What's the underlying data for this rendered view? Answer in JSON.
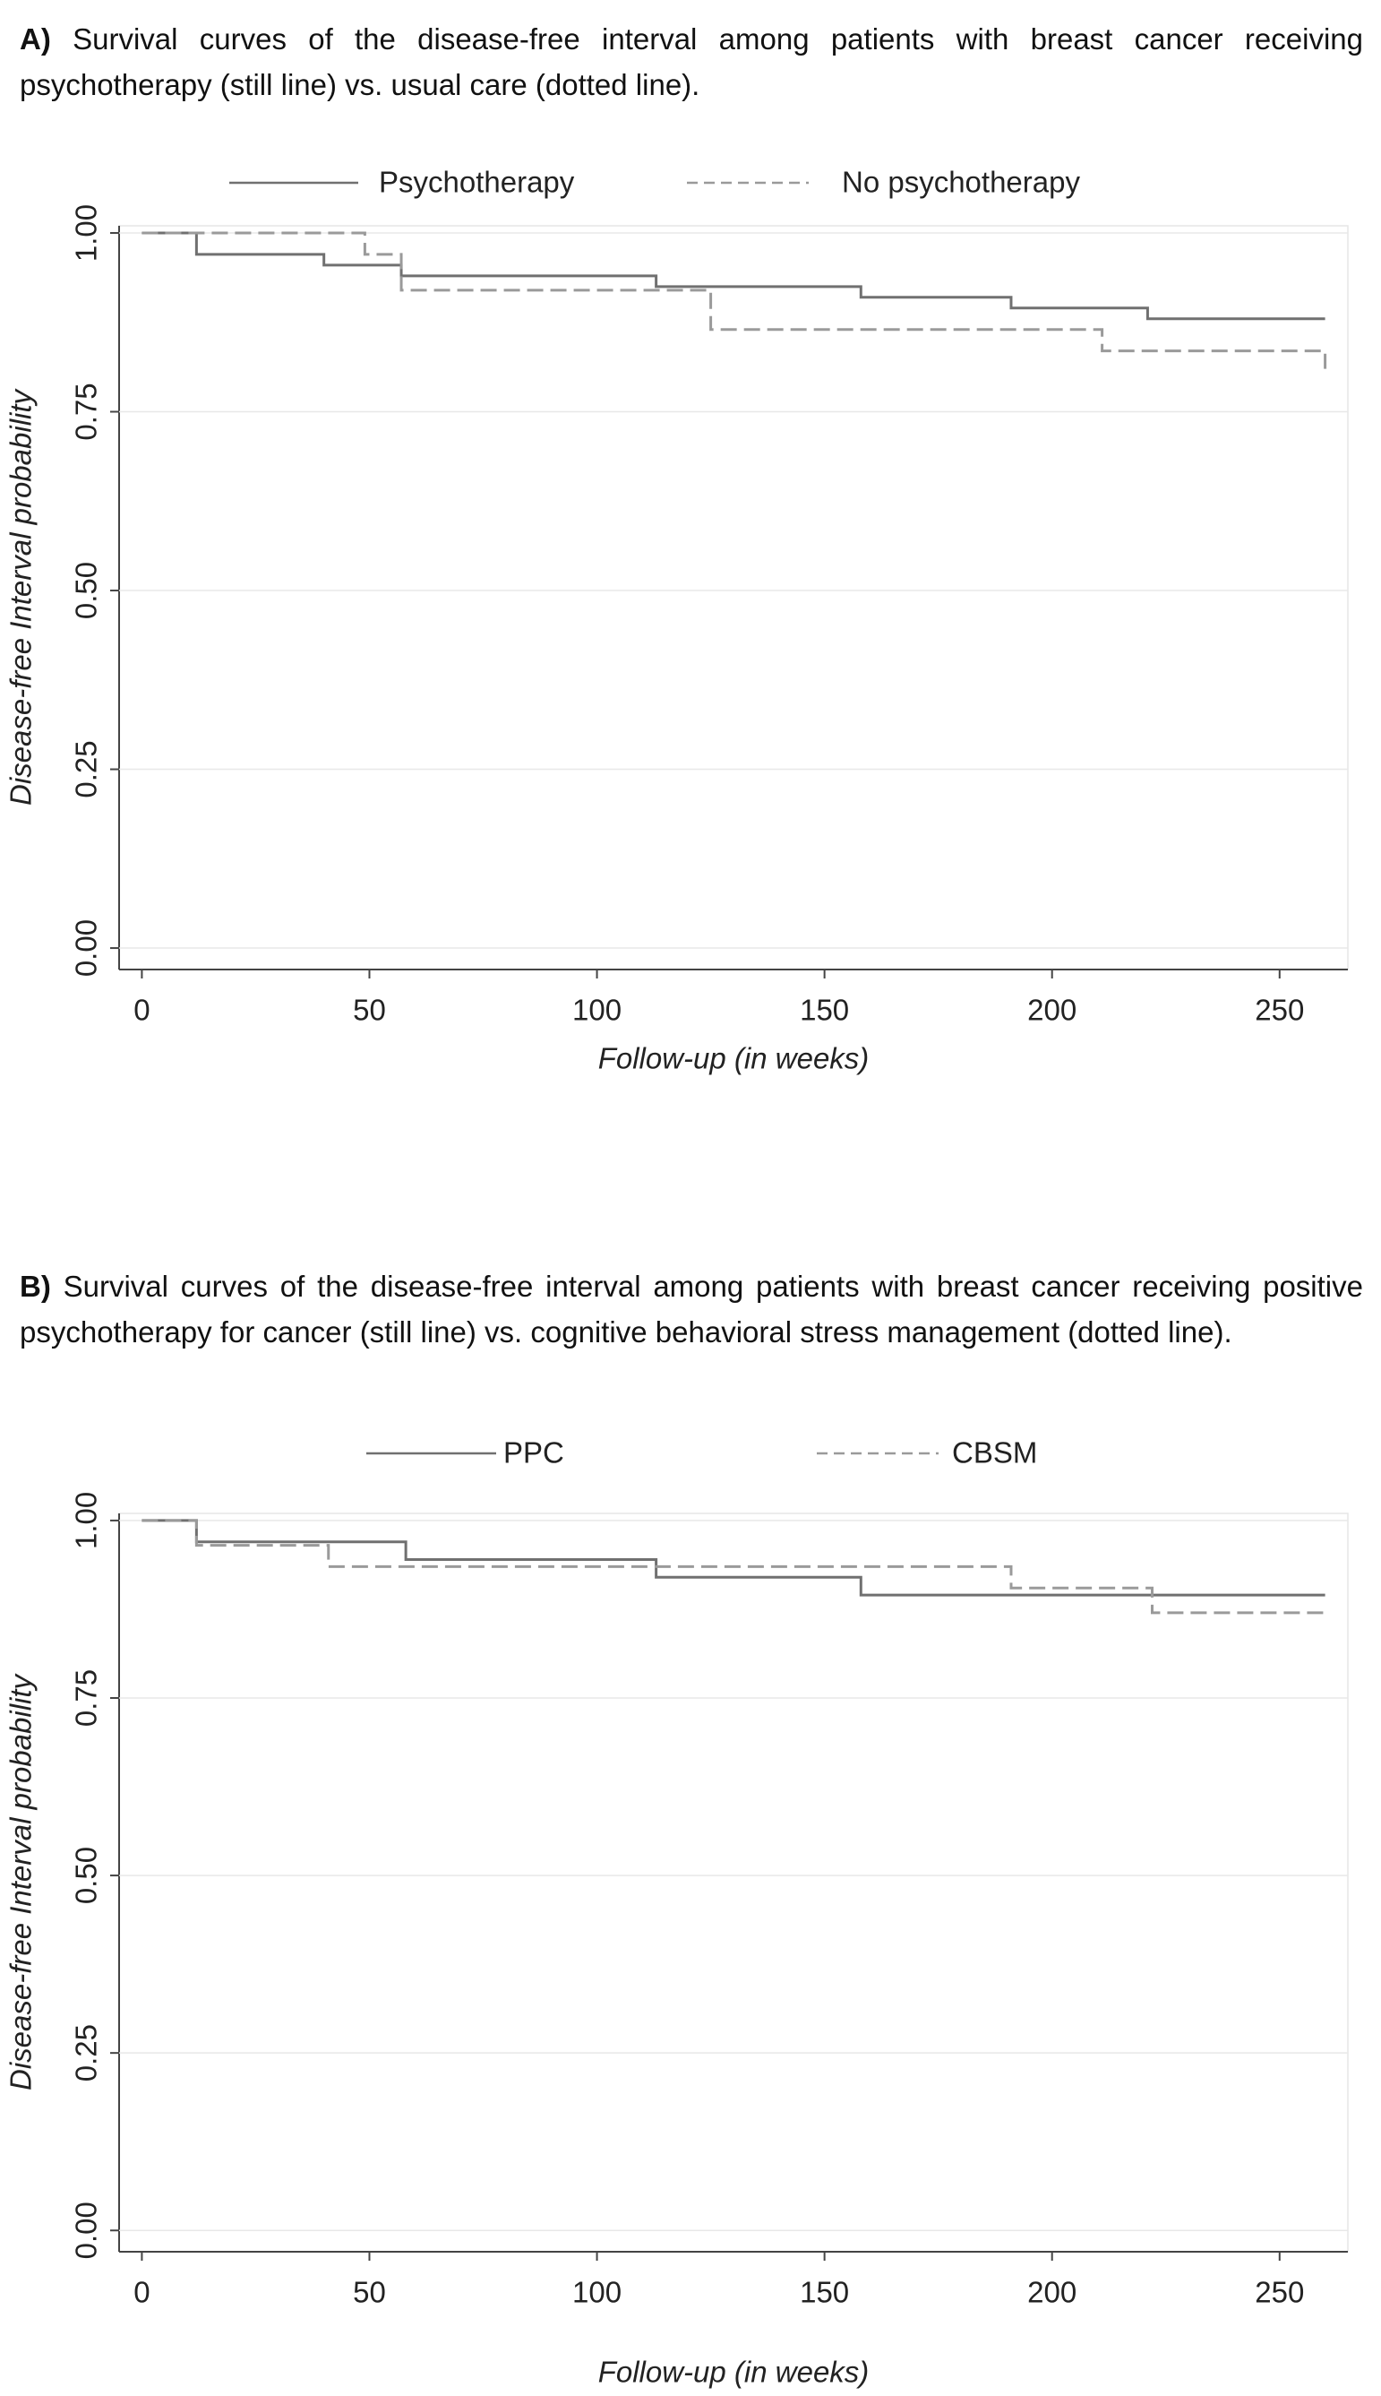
{
  "chart_data": [
    {
      "type": "step",
      "label": "A)",
      "title": "Survival curves of the disease-free interval among patients with breast cancer receiving psychotherapy (still line) vs. usual care (dotted line).",
      "xlabel": "Follow-up (in weeks)",
      "ylabel": "Disease-free Interval probability",
      "series": [
        {
          "name": "Psychotherapy",
          "color": "#707070",
          "style": "solid",
          "x": [
            0,
            12,
            40,
            57,
            113,
            158,
            191,
            221,
            260
          ],
          "values": [
            1.0,
            0.97,
            0.955,
            0.94,
            0.925,
            0.91,
            0.895,
            0.88,
            0.88
          ]
        },
        {
          "name": "No psychotherapy",
          "color": "#9a9a9a",
          "style": "dashed",
          "x": [
            0,
            49,
            57,
            125,
            211,
            260
          ],
          "values": [
            1.0,
            0.97,
            0.92,
            0.865,
            0.835,
            0.81
          ]
        }
      ],
      "xlim": [
        -5,
        265
      ],
      "xticks": [
        0,
        50,
        100,
        150,
        200,
        250
      ],
      "ylim": [
        -0.03,
        1.01
      ],
      "yticks": [
        {
          "value": 0,
          "label": "0.00"
        },
        {
          "value": 0.25,
          "label": "0.25"
        },
        {
          "value": 0.5,
          "label": "0.50"
        },
        {
          "value": 0.75,
          "label": "0.75"
        },
        {
          "value": 1,
          "label": "1.00"
        }
      ],
      "grid": true
    },
    {
      "type": "step",
      "label": "B)",
      "title": "Survival curves of the disease-free interval among patients with breast cancer receiving positive psychotherapy for cancer (still line) vs. cognitive behavioral stress management (dotted line).",
      "xlabel": "Follow-up (in weeks)",
      "ylabel": "Disease-free Interval probability",
      "series": [
        {
          "name": "PPC",
          "color": "#707070",
          "style": "solid",
          "x": [
            0,
            12,
            58,
            113,
            158,
            260
          ],
          "values": [
            1.0,
            0.97,
            0.945,
            0.92,
            0.895,
            0.895
          ]
        },
        {
          "name": "CBSM",
          "color": "#9a9a9a",
          "style": "dashed",
          "x": [
            0,
            12,
            41,
            191,
            222,
            260
          ],
          "values": [
            1.0,
            0.965,
            0.935,
            0.905,
            0.87,
            0.87
          ]
        }
      ],
      "xlim": [
        -5,
        265
      ],
      "xticks": [
        0,
        50,
        100,
        150,
        200,
        250
      ],
      "ylim": [
        -0.03,
        1.01
      ],
      "yticks": [
        {
          "value": 0,
          "label": "0.00"
        },
        {
          "value": 0.25,
          "label": "0.25"
        },
        {
          "value": 0.5,
          "label": "0.50"
        },
        {
          "value": 0.75,
          "label": "0.75"
        },
        {
          "value": 1,
          "label": "1.00"
        }
      ],
      "grid": true
    }
  ]
}
